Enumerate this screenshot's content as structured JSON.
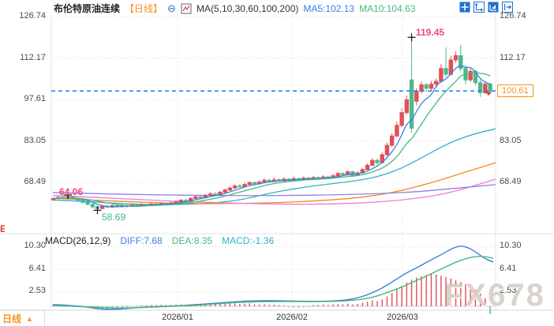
{
  "header": {
    "symbol": "布伦特原油连续",
    "period_tag": "【日线】",
    "ma_params": "MA(5,10,30,60,100,200)",
    "ma5_label": "MA5:102.13",
    "ma10_label": "MA10:104.63"
  },
  "toolbar": {
    "icons": [
      "move-tool",
      "axis-scale-tool",
      "chart-zoom-tool",
      "pan-right-tool"
    ]
  },
  "axes": {
    "left": [
      "126.74",
      "112.17",
      "97.61",
      "83.05",
      "68.49"
    ],
    "right": [
      "126.74",
      "112.17",
      "83.05",
      "68.49"
    ],
    "macd_ticks": [
      "10.30",
      "6.41",
      "2.53"
    ]
  },
  "annotations": {
    "peak_high": "119.45",
    "early_high": "64.06",
    "early_low": "58.69",
    "last_price": "100.61",
    "clipped_glyph": "E"
  },
  "macd_header": {
    "title": "MACD(26,12,9)",
    "diff_label": "DIFF:7.68",
    "dea_label": "DEA:8.35",
    "macd_label": "MACD:-1.36"
  },
  "xaxis": {
    "labels": [
      "2026/01",
      "2026/02",
      "2026/03"
    ]
  },
  "footer": {
    "period": "日线",
    "arrow": "▲"
  },
  "watermark": "FX678",
  "colors": {
    "up": "#e05059",
    "down": "#4db98c",
    "ma5": "#3d7ee0",
    "ma10": "#45b97c",
    "dashed_line": "#1f7ae0",
    "last_price": "#f7931e",
    "grid": "#d8d8d8",
    "border": "#e3e3e3",
    "diff": "#3d7ee0",
    "dea": "#45b97c"
  },
  "chart_data": {
    "type": "candlestick",
    "title": "布伦特原油连续 日线",
    "price_axis": {
      "tick_values": [
        126.74,
        112.17,
        97.61,
        83.05,
        68.49
      ],
      "last": 100.61,
      "peak": 119.45
    },
    "x_axis_labels": [
      "2026/01",
      "2026/02",
      "2026/03"
    ],
    "candles_ohlc": [
      [
        62.3,
        63.1,
        62.0,
        62.8
      ],
      [
        62.8,
        63.6,
        62.5,
        63.2
      ],
      [
        63.2,
        63.8,
        62.8,
        63.0
      ],
      [
        63.0,
        64.06,
        62.9,
        63.4
      ],
      [
        63.4,
        63.7,
        62.5,
        62.8
      ],
      [
        62.8,
        63.0,
        61.8,
        62.2
      ],
      [
        62.2,
        62.4,
        61.0,
        61.5
      ],
      [
        61.5,
        61.7,
        60.3,
        60.8
      ],
      [
        60.8,
        61.0,
        59.4,
        59.9
      ],
      [
        59.9,
        60.2,
        58.69,
        59.3
      ],
      [
        59.3,
        60.5,
        59.0,
        60.1
      ],
      [
        60.1,
        60.6,
        59.4,
        59.8
      ],
      [
        59.8,
        60.8,
        59.5,
        60.3
      ],
      [
        60.3,
        60.7,
        59.6,
        59.9
      ],
      [
        59.9,
        60.9,
        59.7,
        60.4
      ],
      [
        60.4,
        60.8,
        59.6,
        60.0
      ],
      [
        60.0,
        61.0,
        59.8,
        60.5
      ],
      [
        60.5,
        60.9,
        59.9,
        60.2
      ],
      [
        60.2,
        61.1,
        60.0,
        60.7
      ],
      [
        60.7,
        61.0,
        60.1,
        60.4
      ],
      [
        60.4,
        61.3,
        60.2,
        60.9
      ],
      [
        60.9,
        61.2,
        60.3,
        60.6
      ],
      [
        60.6,
        61.5,
        60.4,
        61.1
      ],
      [
        61.1,
        61.4,
        60.5,
        60.8
      ],
      [
        60.8,
        61.7,
        60.6,
        61.3
      ],
      [
        61.3,
        62.0,
        61.0,
        61.6
      ],
      [
        61.6,
        62.6,
        61.4,
        62.2
      ],
      [
        62.2,
        62.8,
        61.7,
        62.0
      ],
      [
        62.0,
        63.3,
        61.9,
        62.8
      ],
      [
        62.8,
        64.0,
        62.6,
        63.4
      ],
      [
        63.4,
        64.2,
        62.9,
        63.1
      ],
      [
        63.1,
        64.5,
        62.9,
        63.9
      ],
      [
        63.9,
        65.1,
        63.6,
        64.4
      ],
      [
        64.4,
        65.0,
        63.8,
        64.1
      ],
      [
        64.1,
        65.5,
        63.9,
        65.0
      ],
      [
        65.0,
        66.3,
        64.8,
        65.8
      ],
      [
        65.8,
        67.0,
        65.5,
        66.5
      ],
      [
        66.5,
        67.8,
        66.2,
        67.2
      ],
      [
        67.2,
        67.9,
        66.7,
        67.0
      ],
      [
        67.0,
        68.3,
        66.8,
        67.8
      ],
      [
        67.8,
        68.9,
        67.5,
        68.4
      ],
      [
        68.4,
        68.8,
        67.6,
        68.0
      ],
      [
        68.0,
        69.2,
        67.8,
        68.6
      ],
      [
        68.6,
        70.0,
        68.4,
        69.2
      ],
      [
        69.2,
        69.8,
        68.5,
        68.8
      ],
      [
        68.8,
        70.2,
        68.6,
        69.4
      ],
      [
        69.4,
        69.9,
        68.7,
        69.0
      ],
      [
        69.0,
        70.3,
        68.8,
        69.6
      ],
      [
        69.6,
        70.0,
        68.9,
        69.2
      ],
      [
        69.2,
        70.5,
        69.0,
        69.8
      ],
      [
        69.8,
        70.2,
        69.1,
        69.4
      ],
      [
        69.4,
        70.6,
        69.2,
        70.0
      ],
      [
        70.0,
        70.4,
        69.3,
        69.6
      ],
      [
        69.6,
        70.8,
        69.4,
        70.2
      ],
      [
        70.2,
        70.6,
        69.5,
        69.8
      ],
      [
        69.8,
        71.0,
        69.6,
        70.4
      ],
      [
        70.4,
        70.8,
        69.7,
        70.0
      ],
      [
        70.0,
        71.5,
        69.8,
        70.8
      ],
      [
        70.8,
        72.2,
        70.5,
        71.6
      ],
      [
        71.6,
        72.0,
        70.9,
        71.2
      ],
      [
        71.2,
        72.8,
        71.0,
        72.2
      ],
      [
        72.2,
        72.6,
        70.4,
        70.9
      ],
      [
        70.9,
        72.4,
        70.6,
        71.8
      ],
      [
        71.8,
        73.6,
        71.5,
        73.0
      ],
      [
        73.0,
        75.2,
        72.8,
        74.5
      ],
      [
        74.5,
        77.0,
        74.2,
        76.2
      ],
      [
        76.2,
        76.8,
        74.8,
        75.4
      ],
      [
        75.4,
        79.0,
        75.1,
        78.2
      ],
      [
        78.2,
        82.4,
        77.8,
        81.5
      ],
      [
        81.5,
        85.8,
        81.0,
        84.8
      ],
      [
        84.8,
        89.8,
        84.3,
        88.5
      ],
      [
        88.5,
        94.5,
        88.0,
        93.0
      ],
      [
        93.0,
        99.0,
        92.4,
        97.5
      ],
      [
        104.5,
        119.45,
        86.0,
        87.5
      ],
      [
        97.0,
        101.5,
        95.5,
        100.5
      ],
      [
        100.5,
        104.0,
        99.8,
        102.8
      ],
      [
        102.8,
        103.5,
        100.2,
        101.5
      ],
      [
        101.5,
        104.2,
        100.8,
        103.0
      ],
      [
        103.0,
        105.0,
        102.0,
        104.0
      ],
      [
        104.0,
        110.0,
        103.5,
        108.5
      ],
      [
        108.5,
        115.9,
        105.5,
        106.5
      ],
      [
        106.5,
        113.0,
        106.0,
        111.5
      ],
      [
        111.5,
        114.5,
        110.5,
        113.0
      ],
      [
        113.0,
        116.8,
        107.5,
        108.5
      ],
      [
        108.5,
        109.5,
        103.0,
        104.5
      ],
      [
        104.5,
        108.5,
        103.8,
        107.5
      ],
      [
        107.5,
        108.0,
        102.5,
        103.5
      ],
      [
        103.5,
        104.5,
        98.5,
        100.0
      ],
      [
        100.0,
        104.0,
        99.5,
        103.0
      ],
      [
        103.0,
        103.5,
        99.8,
        100.61
      ]
    ],
    "overlays": [
      {
        "name": "MA30",
        "color": "#35aec9",
        "points": [
          [
            67,
            62.3
          ],
          [
            100,
            61.9
          ],
          [
            140,
            61.2
          ],
          [
            180,
            60.7
          ],
          [
            220,
            60.6
          ],
          [
            260,
            61.0
          ],
          [
            300,
            62.0
          ],
          [
            340,
            64.6
          ],
          [
            380,
            66.6
          ],
          [
            420,
            68.0
          ],
          [
            450,
            69.0
          ],
          [
            480,
            70.5
          ],
          [
            510,
            73.5
          ],
          [
            540,
            78.0
          ],
          [
            570,
            82.5
          ],
          [
            600,
            85.5
          ],
          [
            628,
            87.3
          ]
        ]
      },
      {
        "name": "MA60",
        "color": "#f08c1e",
        "points": [
          [
            67,
            62.9
          ],
          [
            120,
            62.2
          ],
          [
            180,
            61.5
          ],
          [
            240,
            61.0
          ],
          [
            300,
            61.0
          ],
          [
            360,
            61.4
          ],
          [
            420,
            62.3
          ],
          [
            460,
            63.2
          ],
          [
            500,
            65.0
          ],
          [
            540,
            67.8
          ],
          [
            580,
            71.2
          ],
          [
            628,
            75.4
          ]
        ]
      },
      {
        "name": "MA100",
        "color": "#ef7ad2",
        "points": [
          [
            67,
            63.9
          ],
          [
            150,
            62.8
          ],
          [
            250,
            61.5
          ],
          [
            350,
            60.8
          ],
          [
            420,
            60.8
          ],
          [
            480,
            61.5
          ],
          [
            540,
            63.2
          ],
          [
            580,
            65.5
          ],
          [
            628,
            69.6
          ]
        ]
      },
      {
        "name": "MA200",
        "color": "#8f83e8",
        "points": [
          [
            67,
            64.9
          ],
          [
            150,
            64.3
          ],
          [
            250,
            63.9
          ],
          [
            350,
            63.8
          ],
          [
            450,
            64.2
          ],
          [
            520,
            65.0
          ],
          [
            570,
            66.2
          ],
          [
            628,
            67.7
          ]
        ]
      }
    ],
    "macd": {
      "params": "26,12,9",
      "diff": 7.68,
      "dea": 8.35,
      "macd": -1.36,
      "tick_values": [
        10.3,
        6.41,
        2.53
      ],
      "hist": [
        0.35,
        0.3,
        0.3,
        0.25,
        0.2,
        0.1,
        0.0,
        -0.15,
        -0.3,
        -0.45,
        -0.5,
        -0.55,
        -0.5,
        -0.45,
        -0.3,
        -0.15,
        -0.05,
        0.1,
        0.15,
        0.15,
        0.2,
        0.2,
        0.25,
        0.2,
        0.25,
        0.3,
        0.3,
        0.25,
        0.35,
        0.4,
        0.35,
        0.4,
        0.45,
        0.35,
        0.4,
        0.45,
        0.5,
        0.5,
        0.4,
        0.45,
        0.5,
        0.35,
        0.3,
        0.35,
        0.25,
        0.3,
        0.2,
        0.15,
        -0.15,
        -0.2,
        -0.25,
        -0.2,
        -0.15,
        0.2,
        0.25,
        0.3,
        0.25,
        0.35,
        0.4,
        0.35,
        0.45,
        0.3,
        0.4,
        0.6,
        0.8,
        1.0,
        0.9,
        1.2,
        1.7,
        2.3,
        2.9,
        3.5,
        4.1,
        4.6,
        5.0,
        5.2,
        5.4,
        5.6,
        5.5,
        5.3,
        5.1,
        4.8,
        4.5,
        4.2,
        3.8,
        3.4,
        2.9,
        2.3,
        1.4,
        -1.36
      ],
      "diff_points": [
        [
          67,
          0.3
        ],
        [
          100,
          0.1
        ],
        [
          125,
          -0.5
        ],
        [
          150,
          -0.55
        ],
        [
          175,
          -0.2
        ],
        [
          200,
          -0.05
        ],
        [
          225,
          0.05
        ],
        [
          250,
          0.3
        ],
        [
          280,
          0.6
        ],
        [
          310,
          0.9
        ],
        [
          340,
          1.0
        ],
        [
          370,
          0.9
        ],
        [
          400,
          0.85
        ],
        [
          420,
          0.9
        ],
        [
          440,
          1.1
        ],
        [
          455,
          1.5
        ],
        [
          470,
          2.2
        ],
        [
          485,
          3.2
        ],
        [
          500,
          4.5
        ],
        [
          515,
          5.8
        ],
        [
          530,
          6.8
        ],
        [
          545,
          8.0
        ],
        [
          560,
          9.0
        ],
        [
          575,
          10.2
        ],
        [
          585,
          10.5
        ],
        [
          595,
          10.1
        ],
        [
          605,
          9.2
        ],
        [
          615,
          8.2
        ],
        [
          625,
          7.68
        ]
      ],
      "dea_points": [
        [
          67,
          0.15
        ],
        [
          125,
          -0.2
        ],
        [
          150,
          -0.35
        ],
        [
          200,
          -0.1
        ],
        [
          250,
          0.15
        ],
        [
          300,
          0.7
        ],
        [
          350,
          0.85
        ],
        [
          400,
          0.8
        ],
        [
          440,
          0.9
        ],
        [
          470,
          1.4
        ],
        [
          500,
          2.8
        ],
        [
          530,
          4.6
        ],
        [
          555,
          6.2
        ],
        [
          575,
          7.5
        ],
        [
          590,
          8.3
        ],
        [
          605,
          8.7
        ],
        [
          615,
          8.6
        ],
        [
          625,
          8.35
        ]
      ]
    }
  }
}
